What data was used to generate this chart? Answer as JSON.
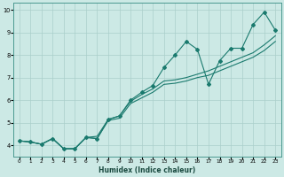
{
  "xlabel": "Humidex (Indice chaleur)",
  "xlim": [
    -0.5,
    23.5
  ],
  "ylim": [
    3.5,
    10.3
  ],
  "xticks": [
    0,
    1,
    2,
    3,
    4,
    5,
    6,
    7,
    8,
    9,
    10,
    11,
    12,
    13,
    14,
    15,
    16,
    17,
    18,
    19,
    20,
    21,
    22,
    23
  ],
  "yticks": [
    4,
    5,
    6,
    7,
    8,
    9,
    10
  ],
  "background_color": "#cce9e5",
  "grid_color": "#aacfca",
  "line_color": "#1a7a6e",
  "x": [
    0,
    1,
    2,
    3,
    4,
    5,
    6,
    7,
    8,
    9,
    10,
    11,
    12,
    13,
    14,
    15,
    16,
    17,
    18,
    19,
    20,
    21,
    22,
    23
  ],
  "y_main": [
    4.2,
    4.15,
    4.05,
    4.3,
    3.85,
    3.85,
    4.35,
    4.3,
    5.15,
    5.3,
    6.0,
    6.35,
    6.65,
    7.45,
    8.0,
    8.6,
    8.25,
    6.7,
    7.75,
    8.3,
    8.3,
    9.35,
    9.9,
    9.1
  ],
  "y_upper": [
    4.2,
    4.15,
    4.05,
    4.3,
    3.85,
    3.85,
    4.35,
    4.4,
    5.15,
    5.3,
    5.95,
    6.25,
    6.5,
    6.85,
    6.9,
    7.0,
    7.15,
    7.3,
    7.5,
    7.7,
    7.9,
    8.1,
    8.45,
    8.85
  ],
  "y_lower": [
    4.2,
    4.15,
    4.05,
    4.3,
    3.85,
    3.85,
    4.35,
    4.3,
    5.1,
    5.2,
    5.85,
    6.1,
    6.35,
    6.7,
    6.75,
    6.85,
    7.0,
    7.1,
    7.3,
    7.5,
    7.7,
    7.9,
    8.2,
    8.6
  ]
}
